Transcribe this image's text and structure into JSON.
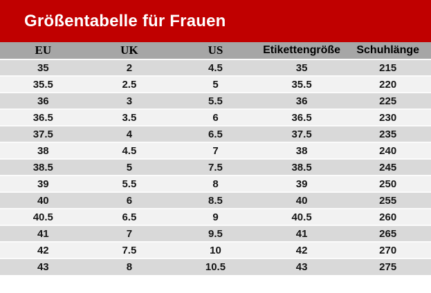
{
  "header": {
    "title": "Größentabelle für Frauen"
  },
  "colors": {
    "banner_bg": "#c00000",
    "banner_text": "#ffffff",
    "thead_bg": "#a6a6a6",
    "row_odd": "#d9d9d9",
    "row_even": "#f2f2f2",
    "cell_text": "#141414",
    "separator": "#fbfbfb"
  },
  "chart_data": {
    "type": "table",
    "title": "Größentabelle für Frauen",
    "columns": [
      "EU",
      "UK",
      "US",
      "Etikettengröße",
      "Schuhlänge"
    ],
    "rows": [
      [
        "35",
        "2",
        "4.5",
        "35",
        "215"
      ],
      [
        "35.5",
        "2.5",
        "5",
        "35.5",
        "220"
      ],
      [
        "36",
        "3",
        "5.5",
        "36",
        "225"
      ],
      [
        "36.5",
        "3.5",
        "6",
        "36.5",
        "230"
      ],
      [
        "37.5",
        "4",
        "6.5",
        "37.5",
        "235"
      ],
      [
        "38",
        "4.5",
        "7",
        "38",
        "240"
      ],
      [
        "38.5",
        "5",
        "7.5",
        "38.5",
        "245"
      ],
      [
        "39",
        "5.5",
        "8",
        "39",
        "250"
      ],
      [
        "40",
        "6",
        "8.5",
        "40",
        "255"
      ],
      [
        "40.5",
        "6.5",
        "9",
        "40.5",
        "260"
      ],
      [
        "41",
        "7",
        "9.5",
        "41",
        "265"
      ],
      [
        "42",
        "7.5",
        "10",
        "42",
        "270"
      ],
      [
        "43",
        "8",
        "10.5",
        "43",
        "275"
      ]
    ]
  }
}
